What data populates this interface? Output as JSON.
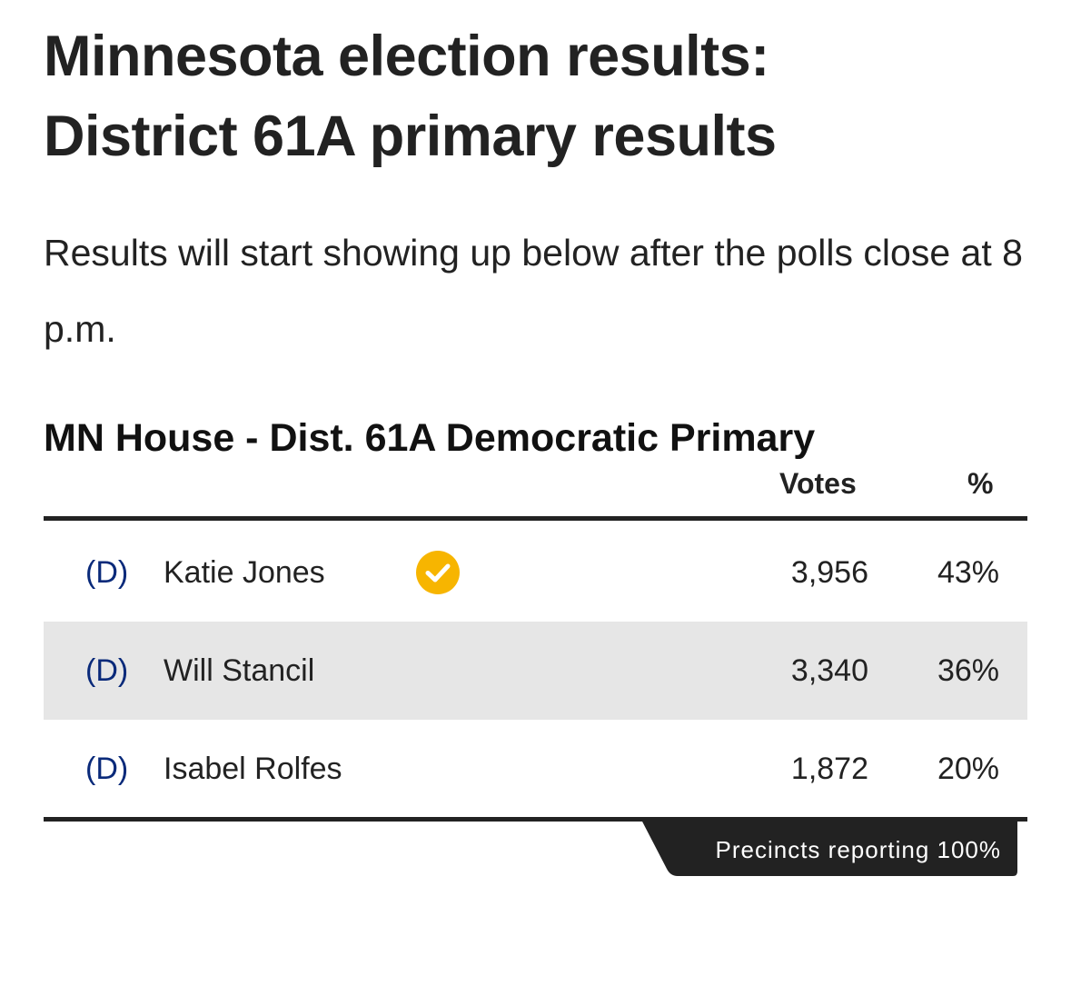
{
  "header": {
    "title_line1": "Minnesota election results:",
    "title_line2": "District 61A primary results",
    "intro": "Results will start showing up below after the polls close at 8 p.m."
  },
  "race": {
    "title": "MN House - Dist. 61A Democratic Primary",
    "columns": {
      "votes": "Votes",
      "percent": "%"
    },
    "candidates": [
      {
        "party": "(D)",
        "name": "Katie Jones",
        "votes": "3,956",
        "percent": "43%",
        "winner": true
      },
      {
        "party": "(D)",
        "name": "Will Stancil",
        "votes": "3,340",
        "percent": "36%",
        "winner": false
      },
      {
        "party": "(D)",
        "name": "Isabel Rolfes",
        "votes": "1,872",
        "percent": "20%",
        "winner": false
      }
    ],
    "precincts_reporting": "Precincts reporting 100%"
  },
  "icons": {
    "winner": "check-circle-icon"
  },
  "colors": {
    "text": "#222222",
    "party": "#0a2a7a",
    "winner_check": "#f7b500",
    "row_shade": "#e6e6e6",
    "tab_bg": "#222222"
  }
}
